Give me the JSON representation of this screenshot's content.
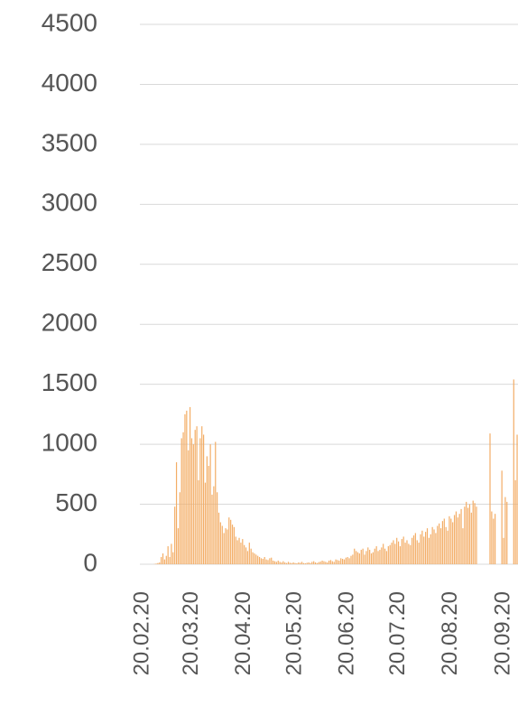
{
  "chart_data": {
    "type": "bar",
    "color": "#f3ad66",
    "grid": true,
    "ylim": [
      0,
      4500
    ],
    "yticks": [
      0,
      500,
      1000,
      1500,
      2000,
      2500,
      3000,
      3500,
      4000,
      4500
    ],
    "categories": [
      "20.02.20",
      null,
      null,
      null,
      null,
      null,
      null,
      null,
      null,
      null,
      null,
      null,
      null,
      null,
      null,
      null,
      null,
      null,
      null,
      null,
      null,
      null,
      null,
      null,
      null,
      null,
      null,
      null,
      null,
      "20.03.20",
      null,
      null,
      null,
      null,
      null,
      null,
      null,
      null,
      null,
      null,
      null,
      null,
      null,
      null,
      null,
      null,
      null,
      null,
      null,
      null,
      null,
      null,
      null,
      null,
      null,
      null,
      null,
      null,
      null,
      null,
      "20.04.20",
      null,
      null,
      null,
      null,
      null,
      null,
      null,
      null,
      null,
      null,
      null,
      null,
      null,
      null,
      null,
      null,
      null,
      null,
      null,
      null,
      null,
      null,
      null,
      null,
      null,
      null,
      null,
      null,
      null,
      "20.05.20",
      null,
      null,
      null,
      null,
      null,
      null,
      null,
      null,
      null,
      null,
      null,
      null,
      null,
      null,
      null,
      null,
      null,
      null,
      null,
      null,
      null,
      null,
      null,
      null,
      null,
      null,
      null,
      null,
      null,
      null,
      "20.06.20",
      null,
      null,
      null,
      null,
      null,
      null,
      null,
      null,
      null,
      null,
      null,
      null,
      null,
      null,
      null,
      null,
      null,
      null,
      null,
      null,
      null,
      null,
      null,
      null,
      null,
      null,
      null,
      null,
      null,
      "20.07.20",
      null,
      null,
      null,
      null,
      null,
      null,
      null,
      null,
      null,
      null,
      null,
      null,
      null,
      null,
      null,
      null,
      null,
      null,
      null,
      null,
      null,
      null,
      null,
      null,
      null,
      null,
      null,
      null,
      null,
      null,
      "20.08.20",
      null,
      null,
      null,
      null,
      null,
      null,
      null,
      null,
      null,
      null,
      null,
      null,
      null,
      null,
      null,
      null,
      null,
      null,
      null,
      null,
      null,
      null,
      null,
      null,
      null,
      null,
      null,
      null,
      null,
      null,
      "20.09.20",
      null,
      null,
      null,
      null,
      null,
      null,
      null,
      null
    ],
    "values": [
      0,
      0,
      0,
      0,
      0,
      0,
      0,
      2,
      5,
      10,
      15,
      60,
      90,
      40,
      70,
      150,
      60,
      170,
      100,
      480,
      850,
      300,
      600,
      1050,
      1100,
      1250,
      1280,
      950,
      1310,
      1050,
      1000,
      1120,
      1150,
      700,
      1050,
      1150,
      1080,
      680,
      900,
      820,
      1000,
      580,
      650,
      1020,
      600,
      430,
      350,
      320,
      260,
      300,
      290,
      390,
      370,
      330,
      310,
      230,
      200,
      220,
      180,
      210,
      160,
      140,
      110,
      180,
      130,
      100,
      90,
      80,
      70,
      60,
      50,
      45,
      60,
      40,
      35,
      50,
      55,
      30,
      25,
      20,
      30,
      20,
      15,
      25,
      15,
      10,
      20,
      12,
      10,
      15,
      10,
      8,
      15,
      12,
      20,
      10,
      8,
      12,
      15,
      10,
      20,
      25,
      15,
      10,
      18,
      22,
      30,
      25,
      20,
      15,
      30,
      35,
      25,
      20,
      40,
      35,
      30,
      50,
      45,
      40,
      55,
      60,
      50,
      70,
      80,
      130,
      110,
      100,
      90,
      120,
      130,
      80,
      110,
      140,
      120,
      90,
      100,
      130,
      150,
      110,
      120,
      140,
      170,
      130,
      110,
      150,
      160,
      180,
      200,
      170,
      220,
      190,
      150,
      210,
      230,
      180,
      200,
      170,
      160,
      220,
      240,
      260,
      200,
      180,
      250,
      280,
      230,
      270,
      300,
      220,
      250,
      310,
      290,
      260,
      320,
      340,
      300,
      360,
      380,
      310,
      280,
      400,
      380,
      350,
      410,
      440,
      390,
      420,
      460,
      300,
      480,
      520,
      470,
      500,
      430,
      530,
      510,
      480,
      0,
      0,
      0,
      0,
      0,
      0,
      0,
      1090,
      440,
      380,
      420,
      0,
      0,
      0,
      780,
      220,
      560,
      520,
      0,
      0,
      0,
      1540,
      700,
      1080
    ]
  }
}
